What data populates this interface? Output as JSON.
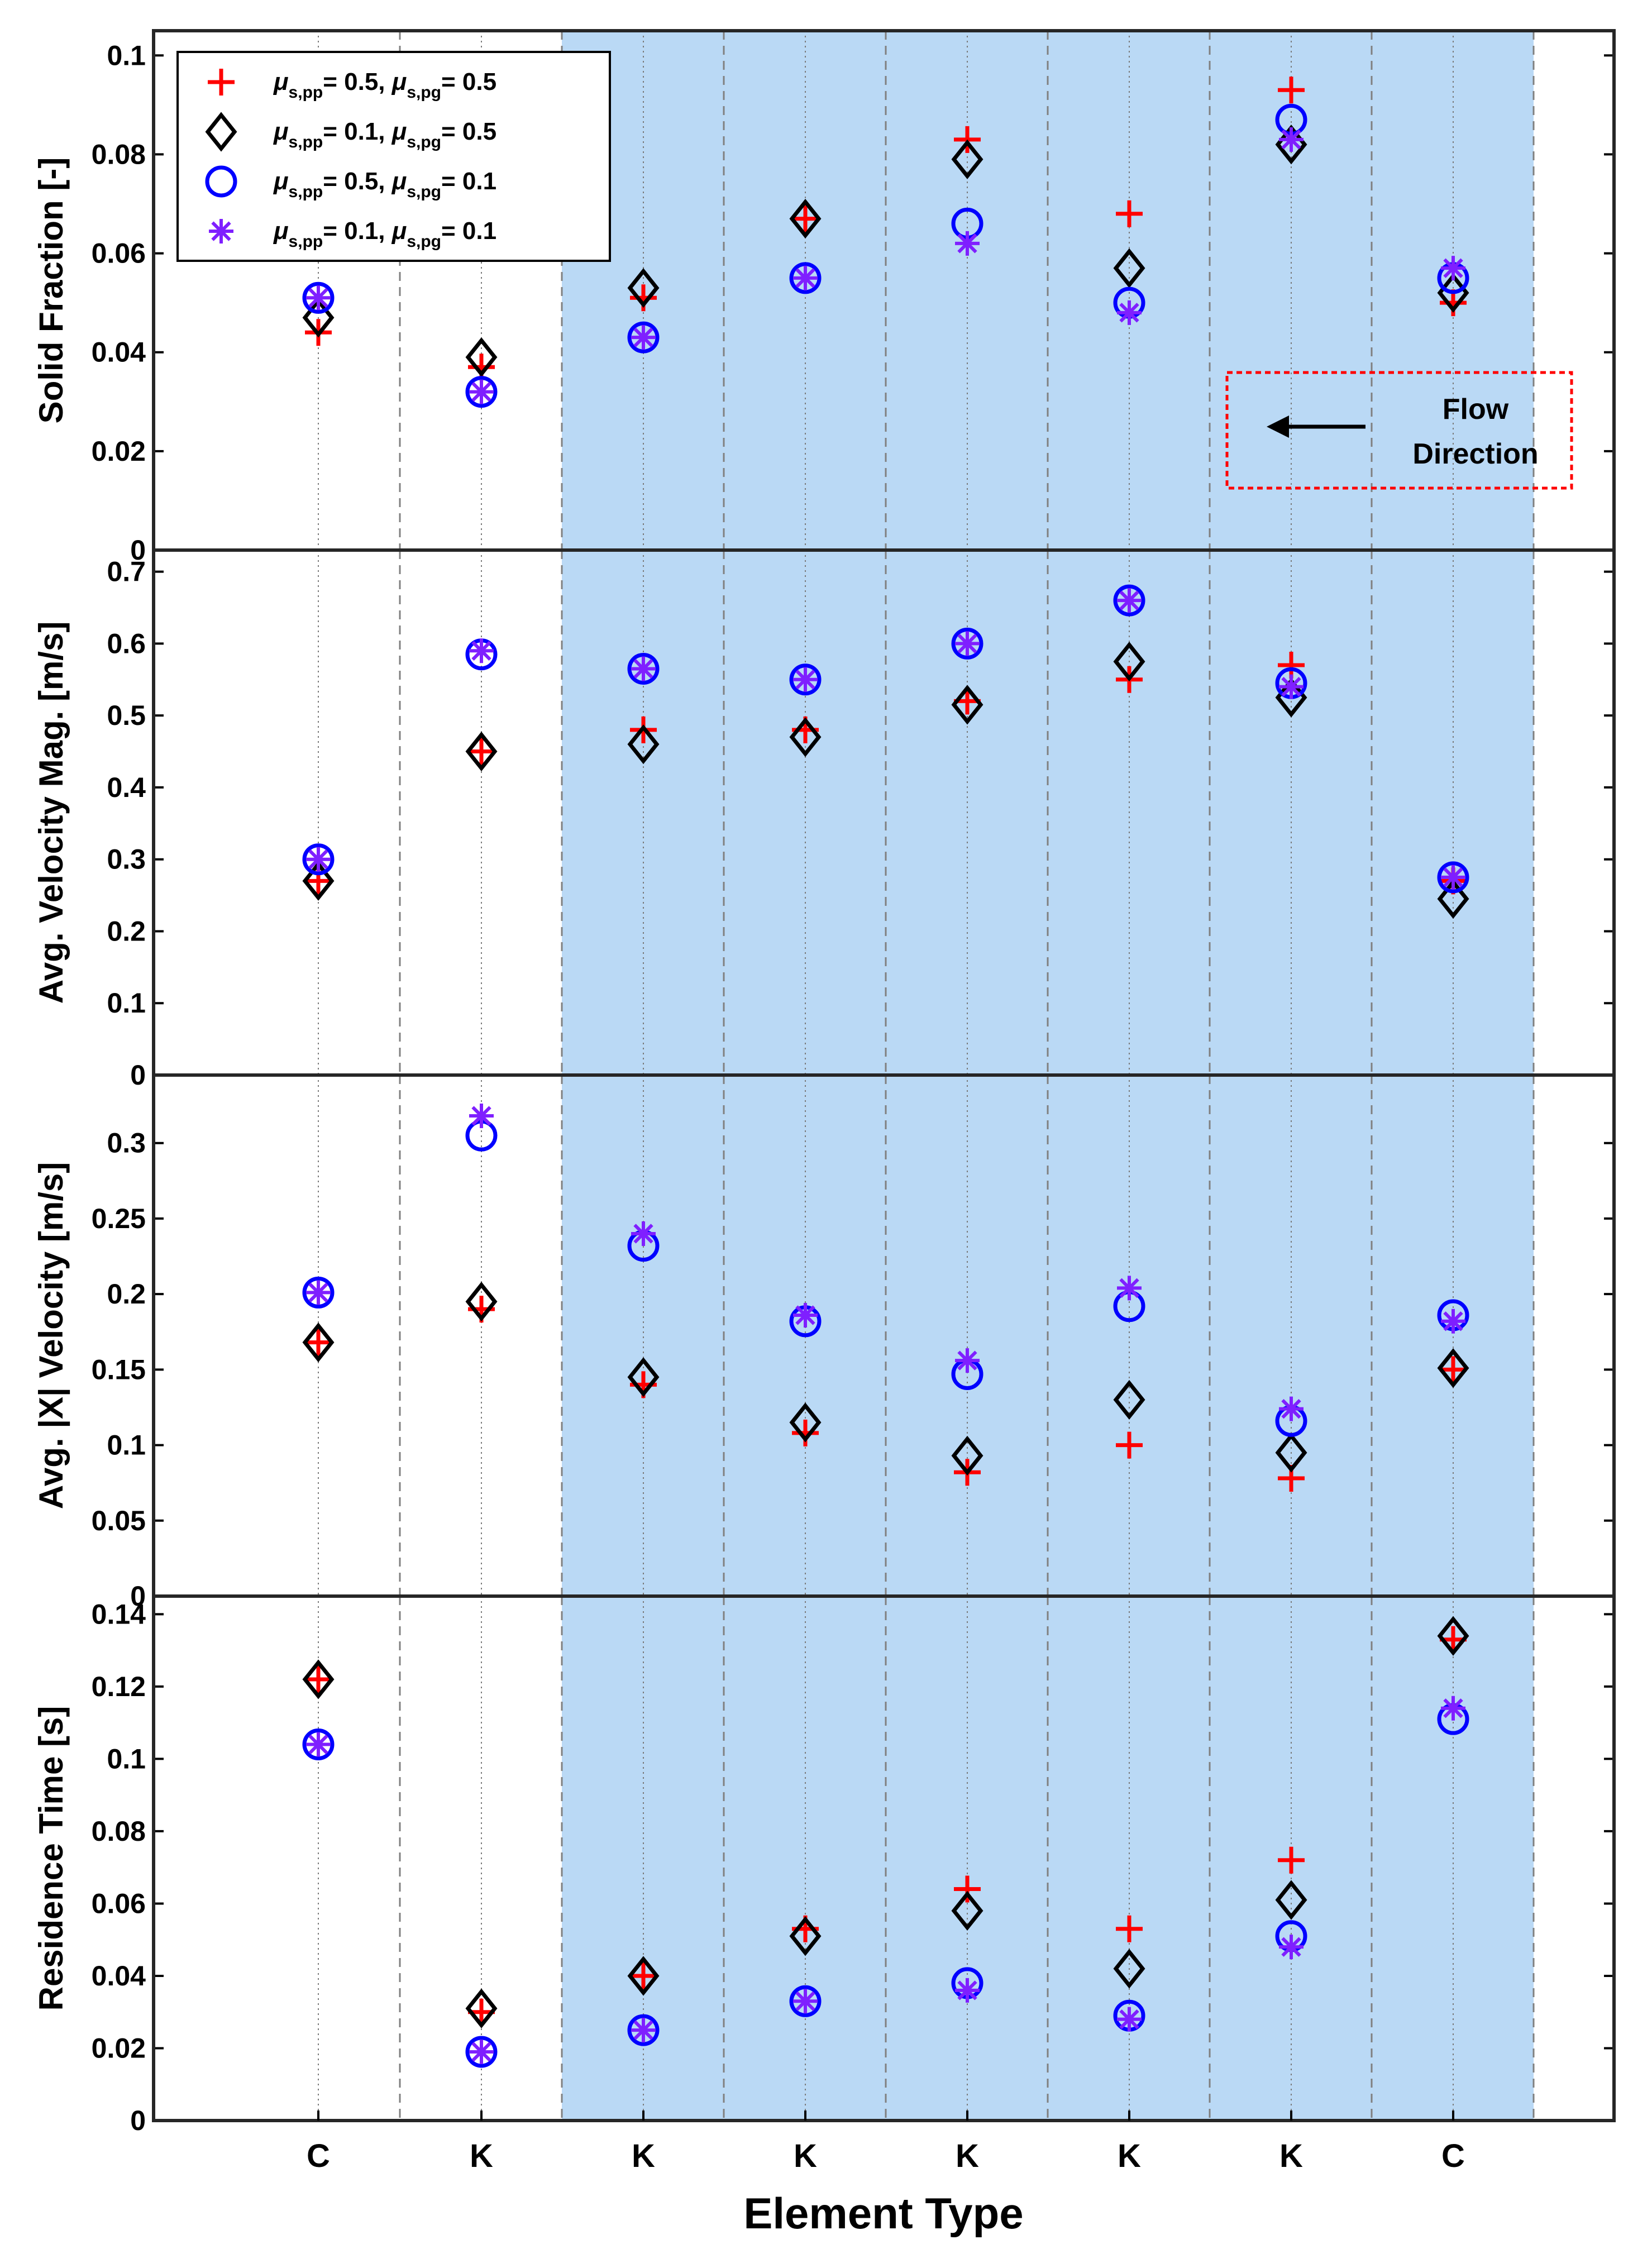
{
  "chart_data": {
    "type": "scatter",
    "x_title": "Element Type",
    "categories": [
      "C",
      "K",
      "K",
      "K",
      "K",
      "K",
      "K",
      "C"
    ],
    "shaded_category_span": [
      1,
      6
    ],
    "legend": [
      {
        "id": "s1",
        "mu": "μ",
        "sub1": "s,pp",
        "v1": "= 0.5, ",
        "sub2": "s,pg",
        "v2": "= 0.5",
        "marker": "plus",
        "color": "#ff0000"
      },
      {
        "id": "s2",
        "mu": "μ",
        "sub1": "s,pp",
        "v1": "= 0.1, ",
        "sub2": "s,pg",
        "v2": "= 0.5",
        "marker": "diamond",
        "color": "#000000"
      },
      {
        "id": "s3",
        "mu": "μ",
        "sub1": "s,pp",
        "v1": "= 0.5, ",
        "sub2": "s,pg",
        "v2": "= 0.1",
        "marker": "circle",
        "color": "#0000ff"
      },
      {
        "id": "s4",
        "mu": "μ",
        "sub1": "s,pp",
        "v1": "= 0.1, ",
        "sub2": "s,pg",
        "v2": "= 0.1",
        "marker": "asterisk",
        "color": "#7f1fff"
      }
    ],
    "annotation": {
      "line1": "Flow",
      "line2": "Direction"
    },
    "panels": [
      {
        "ylabel": "Solid Fraction [-]",
        "ylim": [
          0,
          0.105
        ],
        "yticks": [
          0,
          0.02,
          0.04,
          0.06,
          0.08,
          0.1
        ],
        "ytick_labels": [
          "0",
          "0.02",
          "0.04",
          "0.06",
          "0.08",
          "0.1"
        ],
        "series": {
          "s1": [
            0.044,
            0.037,
            0.051,
            0.067,
            0.083,
            0.068,
            0.093,
            0.05
          ],
          "s2": [
            0.047,
            0.039,
            0.053,
            0.067,
            0.079,
            0.057,
            0.082,
            0.052
          ],
          "s3": [
            0.051,
            0.032,
            0.043,
            0.055,
            0.066,
            0.05,
            0.087,
            0.055
          ],
          "s4": [
            0.051,
            0.032,
            0.043,
            0.055,
            0.062,
            0.048,
            0.083,
            0.057
          ]
        }
      },
      {
        "ylabel": "Avg. Velocity Mag. [m/s]",
        "ylim": [
          0,
          0.73
        ],
        "yticks": [
          0,
          0.1,
          0.2,
          0.3,
          0.4,
          0.5,
          0.6,
          0.7
        ],
        "ytick_labels": [
          "0",
          "0.1",
          "0.2",
          "0.3",
          "0.4",
          "0.5",
          "0.6",
          "0.7"
        ],
        "series": {
          "s1": [
            0.27,
            0.45,
            0.48,
            0.48,
            0.52,
            0.55,
            0.57,
            0.27
          ],
          "s2": [
            0.27,
            0.45,
            0.46,
            0.47,
            0.515,
            0.575,
            0.525,
            0.245
          ],
          "s3": [
            0.3,
            0.585,
            0.565,
            0.55,
            0.6,
            0.66,
            0.545,
            0.275
          ],
          "s4": [
            0.3,
            0.59,
            0.565,
            0.55,
            0.6,
            0.66,
            0.54,
            0.275
          ]
        }
      },
      {
        "ylabel": "Avg. |X| Velocity [m/s]",
        "ylim": [
          0,
          0.345
        ],
        "yticks": [
          0,
          0.05,
          0.1,
          0.15,
          0.2,
          0.25,
          0.3
        ],
        "ytick_labels": [
          "0",
          "0.05",
          "0.1",
          "0.15",
          "0.2",
          "0.25",
          "0.3"
        ],
        "series": {
          "s1": [
            0.168,
            0.19,
            0.14,
            0.108,
            0.082,
            0.1,
            0.078,
            0.15
          ],
          "s2": [
            0.168,
            0.195,
            0.145,
            0.115,
            0.093,
            0.13,
            0.095,
            0.151
          ],
          "s3": [
            0.201,
            0.305,
            0.232,
            0.182,
            0.147,
            0.192,
            0.116,
            0.186
          ],
          "s4": [
            0.201,
            0.318,
            0.24,
            0.186,
            0.156,
            0.204,
            0.124,
            0.182
          ]
        }
      },
      {
        "ylabel": "Residence Time [s]",
        "ylim": [
          0,
          0.145
        ],
        "yticks": [
          0,
          0.02,
          0.04,
          0.06,
          0.08,
          0.1,
          0.12,
          0.14
        ],
        "ytick_labels": [
          "0",
          "0.02",
          "0.04",
          "0.06",
          "0.08",
          "0.1",
          "0.12",
          "0.14"
        ],
        "series": {
          "s1": [
            0.122,
            0.03,
            0.04,
            0.053,
            0.064,
            0.053,
            0.072,
            0.133
          ],
          "s2": [
            0.122,
            0.031,
            0.04,
            0.051,
            0.058,
            0.042,
            0.061,
            0.134
          ],
          "s3": [
            0.104,
            0.019,
            0.025,
            0.033,
            0.038,
            0.029,
            0.051,
            0.111
          ],
          "s4": [
            0.104,
            0.019,
            0.025,
            0.033,
            0.036,
            0.028,
            0.048,
            0.114
          ]
        }
      }
    ]
  }
}
